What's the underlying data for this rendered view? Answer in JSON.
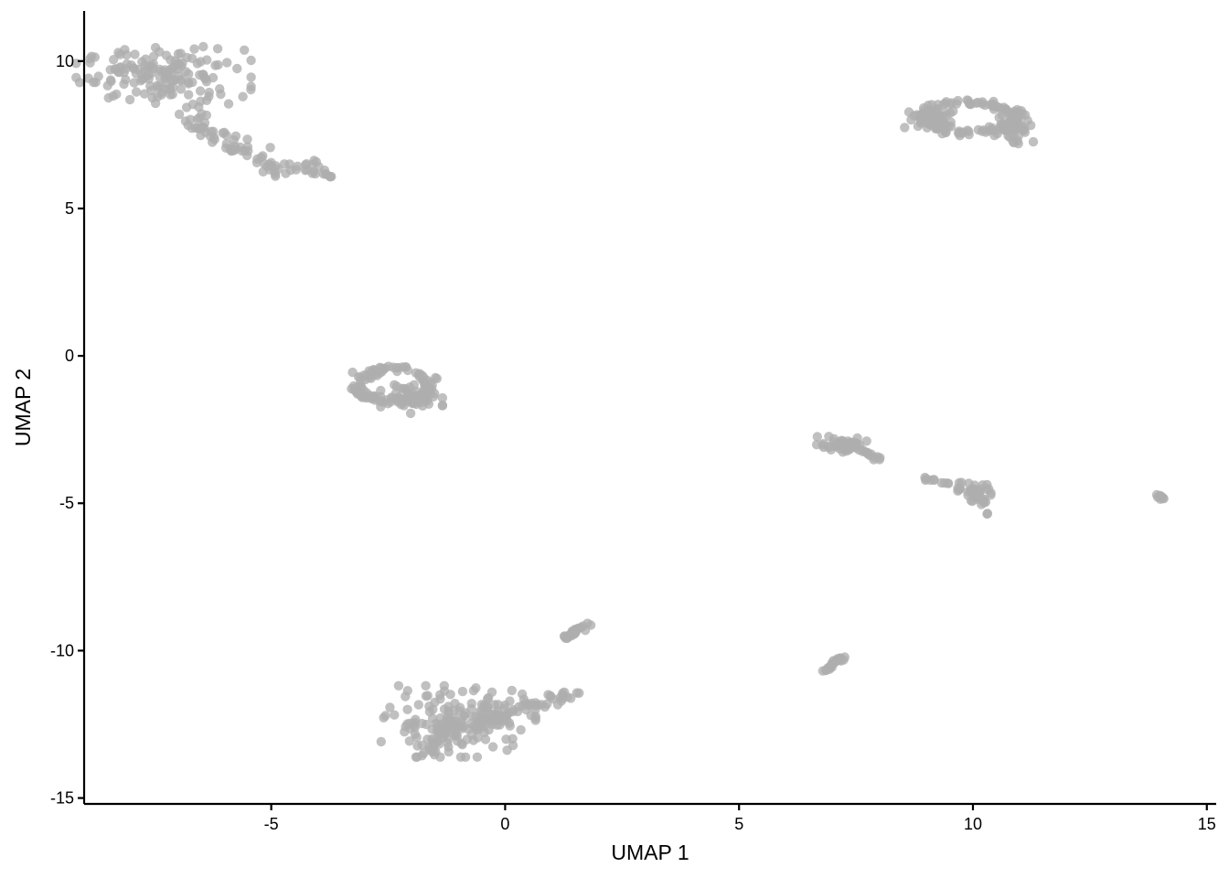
{
  "chart_data": {
    "type": "scatter",
    "title": "",
    "xlabel": "UMAP 1",
    "ylabel": "UMAP 2",
    "xlim": [
      -9.0,
      15.2
    ],
    "ylim": [
      -15.2,
      11.7
    ],
    "xticks": [
      -5,
      0,
      5,
      10,
      15
    ],
    "xtick_labels": [
      "-5",
      "0",
      "5",
      "10",
      "15"
    ],
    "yticks": [
      -15,
      -10,
      -5,
      0,
      5,
      10
    ],
    "ytick_labels": [
      "-15",
      "-10",
      "-5",
      "0",
      "5",
      "10"
    ],
    "grid": false,
    "legend": "none",
    "point_color": "#AEAEAE",
    "clusters": [
      {
        "id": 1,
        "cx": -7.3,
        "cy": 9.5,
        "n": 150,
        "shape": "ellipse",
        "spread": [
          0.85,
          0.45
        ]
      },
      {
        "id": 2,
        "shape": "path",
        "n": 90,
        "width": 0.14,
        "path": [
          [
            -6.8,
            8.5
          ],
          [
            -6.5,
            7.8
          ],
          [
            -6.2,
            7.4
          ],
          [
            -5.6,
            7.0
          ],
          [
            -5.0,
            6.3
          ],
          [
            -4.6,
            6.4
          ],
          [
            -4.0,
            6.3
          ],
          [
            -3.8,
            6.1
          ]
        ]
      },
      {
        "id": 3,
        "shape": "ring",
        "cx": -2.4,
        "cy": -1.0,
        "n": 110,
        "rx": 0.75,
        "ry": 0.55
      },
      {
        "id": 4,
        "cx": -2.0,
        "cy": -1.4,
        "n": 50,
        "shape": "ellipse",
        "spread": [
          0.3,
          0.25
        ]
      },
      {
        "id": 5,
        "cx": -1.0,
        "cy": -12.4,
        "n": 170,
        "shape": "ellipse",
        "spread": [
          0.75,
          0.55
        ]
      },
      {
        "id": 6,
        "shape": "path",
        "n": 50,
        "width": 0.12,
        "path": [
          [
            -0.5,
            -12.5
          ],
          [
            0.2,
            -12.0
          ],
          [
            1.0,
            -11.7
          ],
          [
            1.5,
            -11.5
          ]
        ]
      },
      {
        "id": 7,
        "shape": "path",
        "n": 30,
        "width": 0.1,
        "path": [
          [
            -1.6,
            -13.6
          ],
          [
            -1.4,
            -12.8
          ],
          [
            -1.3,
            -12.4
          ]
        ]
      },
      {
        "id": 8,
        "shape": "path",
        "n": 25,
        "width": 0.05,
        "path": [
          [
            1.3,
            -9.6
          ],
          [
            1.75,
            -9.1
          ]
        ]
      },
      {
        "id": 9,
        "shape": "path",
        "n": 25,
        "width": 0.05,
        "path": [
          [
            6.75,
            -10.75
          ],
          [
            7.2,
            -10.25
          ]
        ]
      },
      {
        "id": 10,
        "shape": "ring",
        "cx": 9.9,
        "cy": 8.1,
        "n": 110,
        "rx": 1.0,
        "ry": 0.5
      },
      {
        "id": 11,
        "cx": 9.2,
        "cy": 8.1,
        "n": 40,
        "shape": "ellipse",
        "spread": [
          0.3,
          0.2
        ]
      },
      {
        "id": 12,
        "cx": 10.9,
        "cy": 7.8,
        "n": 40,
        "shape": "ellipse",
        "spread": [
          0.2,
          0.3
        ]
      },
      {
        "id": 13,
        "cx": 7.2,
        "cy": -3.0,
        "n": 45,
        "shape": "ellipse",
        "spread": [
          0.25,
          0.12
        ]
      },
      {
        "id": 14,
        "shape": "path",
        "n": 15,
        "width": 0.05,
        "path": [
          [
            7.4,
            -3.1
          ],
          [
            8.0,
            -3.5
          ]
        ]
      },
      {
        "id": 15,
        "shape": "path",
        "n": 35,
        "width": 0.06,
        "path": [
          [
            8.9,
            -4.1
          ],
          [
            9.6,
            -4.4
          ],
          [
            10.1,
            -4.6
          ],
          [
            10.4,
            -5.4
          ]
        ]
      },
      {
        "id": 16,
        "cx": 10.1,
        "cy": -4.6,
        "n": 25,
        "shape": "ellipse",
        "spread": [
          0.18,
          0.15
        ]
      },
      {
        "id": 17,
        "cx": 14.0,
        "cy": -4.8,
        "n": 10,
        "shape": "ellipse",
        "spread": [
          0.05,
          0.04
        ]
      }
    ]
  }
}
